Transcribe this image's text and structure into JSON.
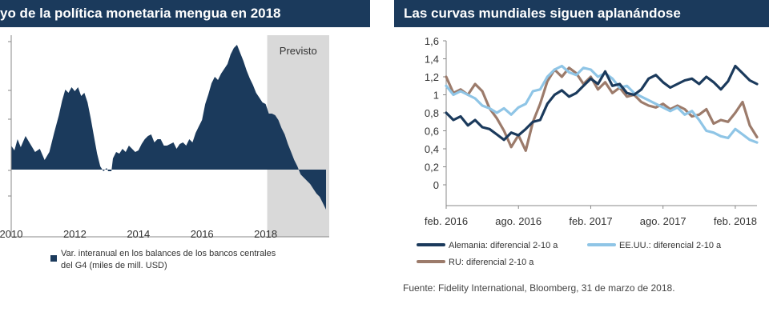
{
  "chart_data": [
    {
      "type": "area",
      "title": "yo de la política monetaria mengua en 2018",
      "x_ticks": [
        "2010",
        "2012",
        "2014",
        "2016",
        "2018"
      ],
      "x_range": [
        2010,
        2020
      ],
      "shaded_region": {
        "label": "Previsto",
        "from": 2018.05,
        "to": 2020.0,
        "color": "#d9d9d9"
      },
      "series": [
        {
          "name": "Var. interanual en los balances de los bancos centrales del G4 (miles de mill. USD)",
          "color": "#1b3a5c",
          "x": [
            2010.0,
            2010.1,
            2010.2,
            2010.3,
            2010.45,
            2010.6,
            2010.75,
            2010.9,
            2011.05,
            2011.2,
            2011.35,
            2011.5,
            2011.6,
            2011.7,
            2011.8,
            2011.9,
            2012.0,
            2012.1,
            2012.2,
            2012.3,
            2012.4,
            2012.5,
            2012.6,
            2012.7,
            2012.8,
            2012.9,
            2013.0,
            2013.05,
            2013.15,
            2013.2,
            2013.3,
            2013.4,
            2013.5,
            2013.6,
            2013.7,
            2013.8,
            2013.9,
            2014.0,
            2014.1,
            2014.2,
            2014.3,
            2014.4,
            2014.5,
            2014.6,
            2014.7,
            2014.8,
            2014.9,
            2015.0,
            2015.1,
            2015.2,
            2015.3,
            2015.4,
            2015.5,
            2015.6,
            2015.7,
            2015.8,
            2015.9,
            2016.0,
            2016.1,
            2016.2,
            2016.3,
            2016.4,
            2016.5,
            2016.6,
            2016.7,
            2016.8,
            2016.9,
            2017.0,
            2017.1,
            2017.2,
            2017.3,
            2017.4,
            2017.5,
            2017.6,
            2017.7,
            2017.8,
            2017.9,
            2018.0,
            2018.1,
            2018.2,
            2018.3,
            2018.4,
            2018.5,
            2018.6,
            2018.7,
            2018.8,
            2018.9,
            2019.0,
            2019.1,
            2019.2,
            2019.3,
            2019.4,
            2019.5,
            2019.6,
            2019.7,
            2019.8,
            2019.9
          ],
          "values": [
            30,
            24,
            38,
            28,
            42,
            32,
            22,
            26,
            12,
            22,
            46,
            68,
            86,
            100,
            96,
            103,
            98,
            103,
            92,
            96,
            84,
            64,
            42,
            20,
            4,
            -2,
            2,
            -2,
            -2,
            14,
            22,
            20,
            26,
            22,
            30,
            26,
            22,
            24,
            32,
            38,
            42,
            44,
            34,
            38,
            38,
            30,
            30,
            32,
            34,
            26,
            32,
            34,
            30,
            38,
            34,
            46,
            54,
            62,
            82,
            94,
            108,
            116,
            112,
            120,
            126,
            132,
            144,
            152,
            156,
            146,
            136,
            124,
            114,
            106,
            96,
            90,
            84,
            82,
            70,
            70,
            68,
            62,
            52,
            44,
            32,
            22,
            12,
            4,
            -6,
            -10,
            -14,
            -18,
            -24,
            -30,
            -34,
            -42,
            -50
          ]
        }
      ]
    },
    {
      "type": "line",
      "title": "Las curvas mundiales siguen aplanándose",
      "x_ticks": [
        "feb. 2016",
        "ago. 2016",
        "feb. 2017",
        "ago. 2017",
        "feb. 2018"
      ],
      "x_range": [
        2016.0,
        2018.15
      ],
      "y_ticks": [
        "0",
        "0,2",
        "0,4",
        "0,6",
        "0,8",
        "1",
        "1,2",
        "1,4",
        "1,6"
      ],
      "ylim": [
        0,
        1.6
      ],
      "source": "Fuente: Fidelity International, Bloomberg, 31 de marzo de 2018.",
      "legend": [
        {
          "label": "Alemania: diferencial 2-10 a",
          "color": "#1b3a5c"
        },
        {
          "label": "EE.UU.: diferencial 2-10 a",
          "color": "#8fc5e6"
        },
        {
          "label": "RU: diferencial 2-10 a",
          "color": "#9c7b6b"
        }
      ],
      "series": [
        {
          "name": "Alemania: diferencial 2-10 a",
          "color": "#1b3a5c",
          "x": [
            2016.0,
            2016.05,
            2016.1,
            2016.15,
            2016.2,
            2016.25,
            2016.3,
            2016.35,
            2016.4,
            2016.45,
            2016.5,
            2016.55,
            2016.6,
            2016.65,
            2016.7,
            2016.75,
            2016.8,
            2016.85,
            2016.9,
            2016.95,
            2017.0,
            2017.05,
            2017.1,
            2017.15,
            2017.2,
            2017.25,
            2017.3,
            2017.35,
            2017.4,
            2017.45,
            2017.5,
            2017.55,
            2017.6,
            2017.65,
            2017.7,
            2017.75,
            2017.8,
            2017.85,
            2017.9,
            2017.95,
            2018.0,
            2018.05,
            2018.1,
            2018.15
          ],
          "values": [
            0.8,
            0.72,
            0.76,
            0.66,
            0.72,
            0.64,
            0.62,
            0.56,
            0.5,
            0.58,
            0.55,
            0.62,
            0.7,
            0.72,
            0.9,
            1.0,
            1.05,
            0.98,
            1.02,
            1.1,
            1.18,
            1.12,
            1.26,
            1.1,
            1.12,
            1.02,
            1.0,
            1.06,
            1.18,
            1.22,
            1.14,
            1.08,
            1.12,
            1.16,
            1.18,
            1.12,
            1.2,
            1.14,
            1.06,
            1.15,
            1.32,
            1.24,
            1.16,
            1.12
          ]
        },
        {
          "name": "EE.UU.: diferencial 2-10 a",
          "color": "#8fc5e6",
          "x": [
            2016.0,
            2016.05,
            2016.1,
            2016.15,
            2016.2,
            2016.25,
            2016.3,
            2016.35,
            2016.4,
            2016.45,
            2016.5,
            2016.55,
            2016.6,
            2016.65,
            2016.7,
            2016.75,
            2016.8,
            2016.85,
            2016.9,
            2016.95,
            2017.0,
            2017.05,
            2017.1,
            2017.15,
            2017.2,
            2017.25,
            2017.3,
            2017.35,
            2017.4,
            2017.45,
            2017.5,
            2017.55,
            2017.6,
            2017.65,
            2017.7,
            2017.75,
            2017.8,
            2017.85,
            2017.9,
            2017.95,
            2018.0,
            2018.05,
            2018.1,
            2018.15
          ],
          "values": [
            1.1,
            1.0,
            1.04,
            1.0,
            0.96,
            0.88,
            0.85,
            0.8,
            0.85,
            0.78,
            0.86,
            0.9,
            1.04,
            1.06,
            1.2,
            1.28,
            1.32,
            1.25,
            1.22,
            1.3,
            1.28,
            1.2,
            1.24,
            1.18,
            1.08,
            1.1,
            1.02,
            0.98,
            0.94,
            0.9,
            0.86,
            0.82,
            0.86,
            0.78,
            0.82,
            0.72,
            0.6,
            0.58,
            0.54,
            0.52,
            0.62,
            0.56,
            0.5,
            0.47
          ]
        },
        {
          "name": "RU: diferencial 2-10 a",
          "color": "#9c7b6b",
          "x": [
            2016.0,
            2016.05,
            2016.1,
            2016.15,
            2016.2,
            2016.25,
            2016.3,
            2016.35,
            2016.4,
            2016.45,
            2016.5,
            2016.55,
            2016.6,
            2016.65,
            2016.7,
            2016.75,
            2016.8,
            2016.85,
            2016.9,
            2016.95,
            2017.0,
            2017.05,
            2017.1,
            2017.15,
            2017.2,
            2017.25,
            2017.3,
            2017.35,
            2017.4,
            2017.45,
            2017.5,
            2017.55,
            2017.6,
            2017.65,
            2017.7,
            2017.75,
            2017.8,
            2017.85,
            2017.9,
            2017.95,
            2018.0,
            2018.05,
            2018.1,
            2018.15
          ],
          "values": [
            1.2,
            1.02,
            1.06,
            1.0,
            1.12,
            1.04,
            0.85,
            0.74,
            0.6,
            0.42,
            0.55,
            0.38,
            0.7,
            0.9,
            1.15,
            1.28,
            1.2,
            1.3,
            1.24,
            1.12,
            1.2,
            1.06,
            1.14,
            1.02,
            1.08,
            0.98,
            1.0,
            0.92,
            0.88,
            0.86,
            0.9,
            0.84,
            0.88,
            0.84,
            0.76,
            0.78,
            0.84,
            0.68,
            0.72,
            0.7,
            0.8,
            0.92,
            0.66,
            0.53
          ]
        }
      ]
    }
  ]
}
